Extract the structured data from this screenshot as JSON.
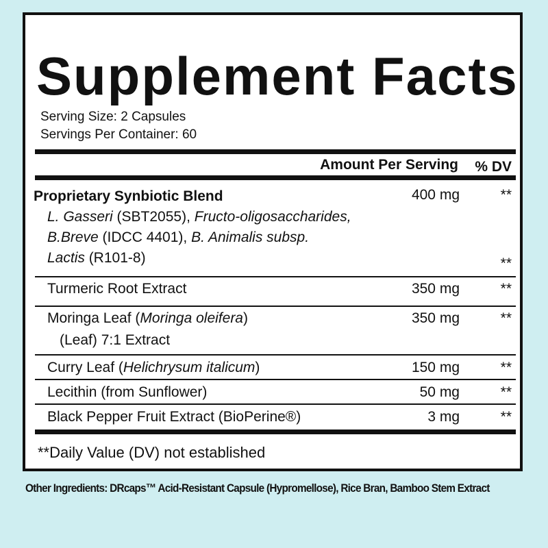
{
  "title": "Supplement Facts",
  "serving_size": "Serving Size: 2 Capsules",
  "servings_per_container": "Servings Per Container: 60",
  "header": {
    "amount": "Amount Per Serving",
    "dv": "% DV"
  },
  "blend": {
    "name": "Proprietary Synbiotic Blend",
    "amount": "400 mg",
    "dv": "**",
    "parts": [
      {
        "i": "L. Gasseri",
        "n": " (SBT2055), "
      },
      {
        "i": "Fructo-oligosaccharides,",
        "n": ""
      },
      {
        "i": "B.Breve",
        "n": " (IDCC 4401), "
      },
      {
        "i": "B. Animalis subsp.",
        "n": ""
      },
      {
        "i": "Lactis",
        "n": " (R101-8)"
      }
    ],
    "dv2": "**"
  },
  "rows": [
    {
      "name": "Turmeric Root Extract",
      "amount": "350 mg",
      "dv": "**"
    },
    {
      "name": "Moringa Leaf (",
      "italic": "Moringa oleifera",
      "name_end": ")",
      "line2": "(Leaf) 7:1 Extract",
      "amount": "350 mg",
      "dv": "**"
    },
    {
      "name": "Curry Leaf (",
      "italic": "Helichrysum italicum",
      "name_end": ")",
      "amount": "150 mg",
      "dv": "**"
    },
    {
      "name": "Lecithin (from Sunflower)",
      "amount": "50 mg",
      "dv": "**"
    },
    {
      "name": "Black Pepper Fruit Extract (BioPerine®)",
      "amount": "3 mg",
      "dv": "**"
    }
  ],
  "footnote": "**Daily Value (DV) not established",
  "other_ingredients": "Other Ingredients: DRcaps™ Acid-Resistant Capsule (Hypromellose), Rice Bran, Bamboo Stem Extract",
  "colors": {
    "background": "#cfeef1",
    "panel": "#ffffff",
    "ink": "#111111"
  }
}
